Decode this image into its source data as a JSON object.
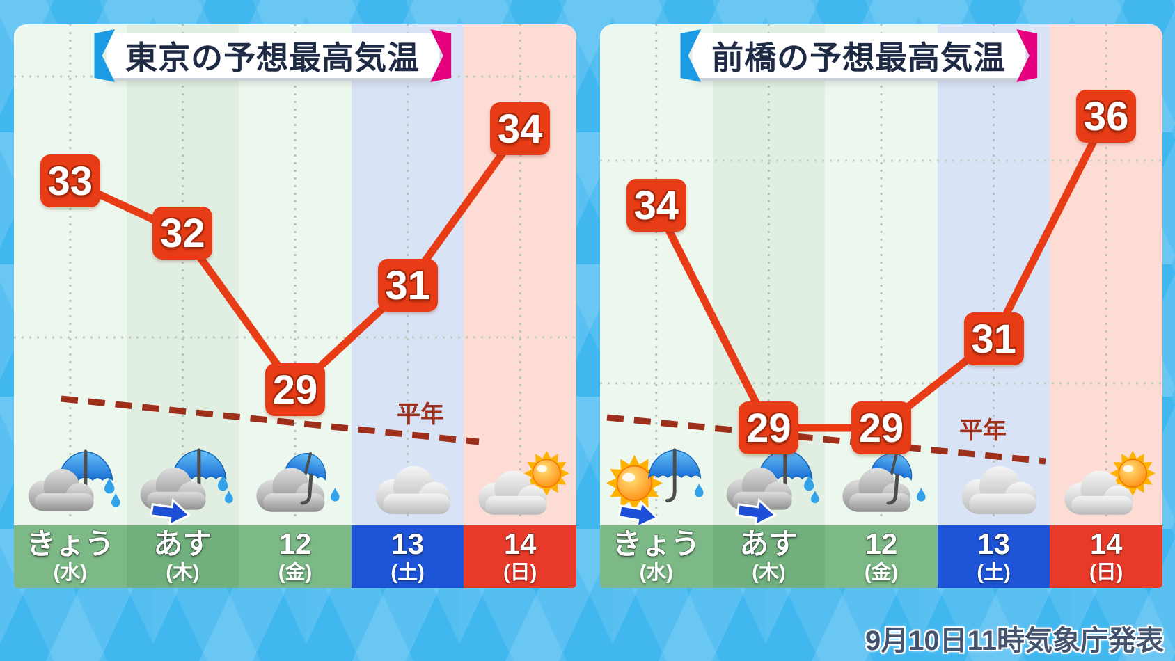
{
  "colors": {
    "background_blue": "#41b7ef",
    "accent_blue_bracket": "#1b9be4",
    "accent_pink_bracket": "#e5007e",
    "temp_box": "#e83c17",
    "trend_line": "#e83c17",
    "normal_line": "#9e2f1b",
    "title_text": "#1f2b45",
    "announcement_text": "#44546e",
    "day_cell_green": "#7cb986",
    "day_cell_green_alt": "#71af7d",
    "day_cell_blue": "#1e55d8",
    "day_cell_red": "#e83a28",
    "band_green": "#ecf7ed",
    "band_green_alt": "#e0efe1",
    "band_blue": "#d8e3f6",
    "band_pink": "#fcdcd4"
  },
  "normal_label": "平年",
  "announcement": "9月10日11時気象庁発表",
  "panels": [
    {
      "title": "東京の予想最高気温",
      "days": [
        {
          "label": "きょう",
          "sub": "(水)",
          "icon": "cloud-umbrella-rain-icon"
        },
        {
          "label": "あす",
          "sub": "(木)",
          "icon": "cloud-umbrella-arrow-icon"
        },
        {
          "label": "12",
          "sub": "(金)",
          "icon": "cloud-small-umbrella-icon"
        },
        {
          "label": "13",
          "sub": "(土)",
          "icon": "cloud-icon"
        },
        {
          "label": "14",
          "sub": "(日)",
          "icon": "cloud-sun-icon"
        }
      ]
    },
    {
      "title": "前橋の予想最高気温",
      "days": [
        {
          "label": "きょう",
          "sub": "(水)",
          "icon": "sun-umbrella-arrow-icon"
        },
        {
          "label": "あす",
          "sub": "(木)",
          "icon": "cloud-umbrella-arrow-icon"
        },
        {
          "label": "12",
          "sub": "(金)",
          "icon": "cloud-small-umbrella-icon"
        },
        {
          "label": "13",
          "sub": "(土)",
          "icon": "cloud-icon"
        },
        {
          "label": "14",
          "sub": "(日)",
          "icon": "cloud-sun-icon"
        }
      ]
    }
  ],
  "chart_data": [
    {
      "type": "line",
      "title": "東京の予想最高気温",
      "categories": [
        "きょう(水)",
        "あす(木)",
        "12(金)",
        "13(土)",
        "14(日)"
      ],
      "values": [
        33,
        32,
        29,
        31,
        34
      ],
      "y_gridlines": [
        35,
        30
      ],
      "ylim": [
        27,
        37
      ],
      "xlabel": "",
      "ylabel": "",
      "grid": "dotted",
      "legend": "none",
      "reference_line": {
        "label": "平年",
        "style": "dashed",
        "approx_start": 28.8,
        "approx_end": 28.0
      }
    },
    {
      "type": "line",
      "title": "前橋の予想最高気温",
      "categories": [
        "きょう(水)",
        "あす(木)",
        "12(金)",
        "13(土)",
        "14(日)"
      ],
      "values": [
        34,
        29,
        29,
        31,
        36
      ],
      "y_gridlines": [
        35,
        30
      ],
      "ylim": [
        27,
        37
      ],
      "xlabel": "",
      "ylabel": "",
      "grid": "dotted",
      "legend": "none",
      "reference_line": {
        "label": "平年",
        "style": "dashed",
        "approx_start": 29.2,
        "approx_end": 28.3
      }
    }
  ]
}
